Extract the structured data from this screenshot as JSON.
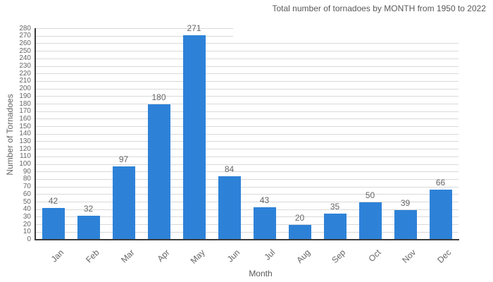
{
  "chart_data": {
    "type": "bar",
    "title": "Total number of tornadoes by MONTH from 1950 to 2022",
    "xlabel": "Month",
    "ylabel": "Number of Tornadoes",
    "categories": [
      "Jan",
      "Feb",
      "Mar",
      "Apr",
      "May",
      "Jun",
      "Jul",
      "Aug",
      "Sep",
      "Oct",
      "Nov",
      "Dec"
    ],
    "values": [
      42,
      32,
      97,
      180,
      271,
      84,
      43,
      20,
      35,
      50,
      39,
      66
    ],
    "ylim": [
      0,
      280
    ],
    "ytick_step": 10,
    "grid": "on",
    "legend": "off",
    "bar_color": "#2d82d8",
    "grid_color": "#d9d9d9",
    "axis_color": "#3c3c3c",
    "tick_text_color": "#666666",
    "title_color": "#595959"
  }
}
